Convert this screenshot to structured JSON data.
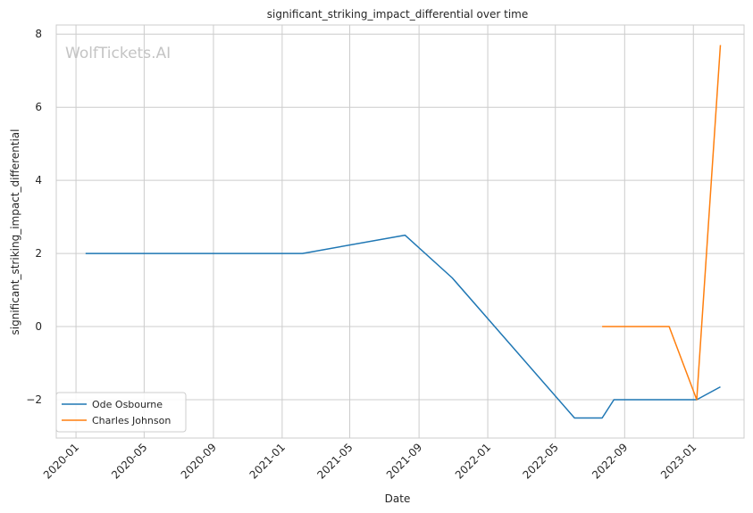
{
  "watermark": "WolfTickets.AI",
  "chart_data": {
    "type": "line",
    "title": "significant_striking_impact_differential over time",
    "xlabel": "Date",
    "ylabel": "significant_striking_impact_differential",
    "x_ticks": [
      "2020-01",
      "2020-05",
      "2020-09",
      "2021-01",
      "2021-05",
      "2021-09",
      "2022-01",
      "2022-05",
      "2022-09",
      "2023-01"
    ],
    "y_ticks": [
      -2,
      0,
      2,
      4,
      6,
      8
    ],
    "xlim": [
      "2019-11-27",
      "2023-04-01"
    ],
    "ylim": [
      -3.05,
      8.25
    ],
    "grid": true,
    "legend_position": "lower-left",
    "series": [
      {
        "name": "Ode Osbourne",
        "color": "#1f77b4",
        "points": [
          {
            "x": "2020-01-18",
            "y": 2.0
          },
          {
            "x": "2021-02-06",
            "y": 2.0
          },
          {
            "x": "2021-08-07",
            "y": 2.5
          },
          {
            "x": "2021-10-30",
            "y": 1.33
          },
          {
            "x": "2022-06-04",
            "y": -2.5
          },
          {
            "x": "2022-07-23",
            "y": -2.5
          },
          {
            "x": "2022-08-13",
            "y": -2.0
          },
          {
            "x": "2023-01-07",
            "y": -2.0
          },
          {
            "x": "2023-02-18",
            "y": -1.65
          }
        ]
      },
      {
        "name": "Charles Johnson",
        "color": "#ff7f0e",
        "points": [
          {
            "x": "2022-07-23",
            "y": 0.0
          },
          {
            "x": "2022-11-19",
            "y": 0.0
          },
          {
            "x": "2023-01-07",
            "y": -2.0
          },
          {
            "x": "2023-02-18",
            "y": 7.7
          }
        ]
      }
    ]
  }
}
